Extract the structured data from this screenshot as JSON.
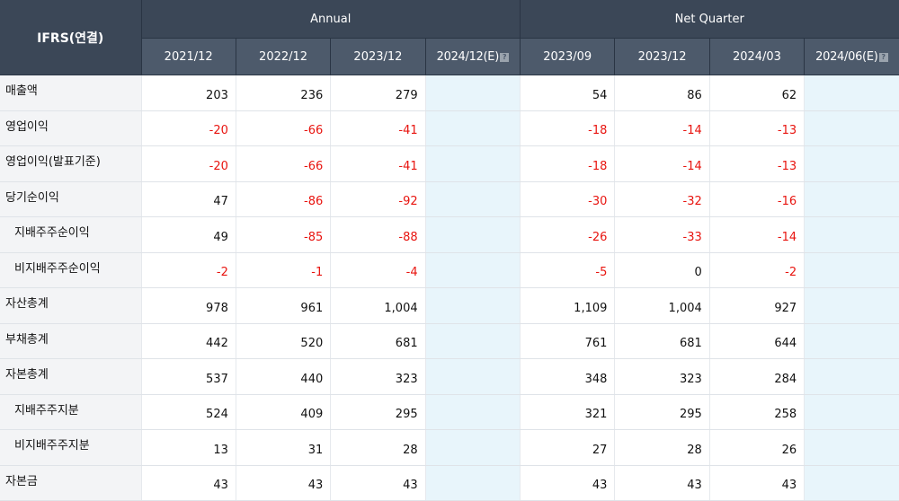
{
  "header": {
    "title": "IFRS(연결)",
    "annual_label": "Annual",
    "quarter_label": "Net Quarter",
    "annual_periods": [
      "2021/12",
      "2022/12",
      "2023/12",
      "2024/12(E)"
    ],
    "quarter_periods": [
      "2023/09",
      "2023/12",
      "2024/03",
      "2024/06(E)"
    ],
    "estimate_icon": "question-mark-icon"
  },
  "colors": {
    "header_dark": "#3b4757",
    "header_light": "#4d5a6b",
    "negative": "#e8140f",
    "estimate_column": "#e8f5fb",
    "label_column": "#f3f4f6"
  },
  "rows": [
    {
      "label": "매출액",
      "sub": false,
      "annual": [
        "203",
        "236",
        "279",
        ""
      ],
      "quarter": [
        "54",
        "86",
        "62",
        ""
      ]
    },
    {
      "label": "영업이익",
      "sub": false,
      "annual": [
        "-20",
        "-66",
        "-41",
        ""
      ],
      "quarter": [
        "-18",
        "-14",
        "-13",
        ""
      ]
    },
    {
      "label": "영업이익(발표기준)",
      "sub": false,
      "annual": [
        "-20",
        "-66",
        "-41",
        ""
      ],
      "quarter": [
        "-18",
        "-14",
        "-13",
        ""
      ]
    },
    {
      "label": "당기순이익",
      "sub": false,
      "annual": [
        "47",
        "-86",
        "-92",
        ""
      ],
      "quarter": [
        "-30",
        "-32",
        "-16",
        ""
      ]
    },
    {
      "label": "지배주주순이익",
      "sub": true,
      "annual": [
        "49",
        "-85",
        "-88",
        ""
      ],
      "quarter": [
        "-26",
        "-33",
        "-14",
        ""
      ]
    },
    {
      "label": "비지배주주순이익",
      "sub": true,
      "annual": [
        "-2",
        "-1",
        "-4",
        ""
      ],
      "quarter": [
        "-5",
        "0",
        "-2",
        ""
      ]
    },
    {
      "label": "자산총계",
      "sub": false,
      "annual": [
        "978",
        "961",
        "1,004",
        ""
      ],
      "quarter": [
        "1,109",
        "1,004",
        "927",
        ""
      ]
    },
    {
      "label": "부채총계",
      "sub": false,
      "annual": [
        "442",
        "520",
        "681",
        ""
      ],
      "quarter": [
        "761",
        "681",
        "644",
        ""
      ]
    },
    {
      "label": "자본총계",
      "sub": false,
      "annual": [
        "537",
        "440",
        "323",
        ""
      ],
      "quarter": [
        "348",
        "323",
        "284",
        ""
      ]
    },
    {
      "label": "지배주주지분",
      "sub": true,
      "annual": [
        "524",
        "409",
        "295",
        ""
      ],
      "quarter": [
        "321",
        "295",
        "258",
        ""
      ]
    },
    {
      "label": "비지배주주지분",
      "sub": true,
      "annual": [
        "13",
        "31",
        "28",
        ""
      ],
      "quarter": [
        "27",
        "28",
        "26",
        ""
      ]
    },
    {
      "label": "자본금",
      "sub": false,
      "annual": [
        "43",
        "43",
        "43",
        ""
      ],
      "quarter": [
        "43",
        "43",
        "43",
        ""
      ]
    }
  ]
}
